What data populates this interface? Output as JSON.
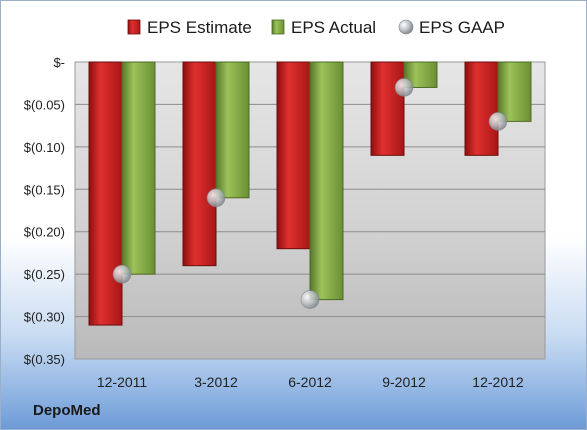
{
  "company": "DepoMed",
  "chart_data": {
    "type": "bar",
    "categories": [
      "12-2011",
      "3-2012",
      "6-2012",
      "9-2012",
      "12-2012"
    ],
    "series": [
      {
        "name": "EPS Estimate",
        "values": [
          -0.31,
          -0.24,
          -0.22,
          -0.11,
          -0.11
        ],
        "color": "#cc1f1f"
      },
      {
        "name": "EPS Actual",
        "values": [
          -0.25,
          -0.16,
          -0.28,
          -0.03,
          -0.07
        ],
        "color": "#7ca73a"
      }
    ],
    "scatter_series": {
      "name": "EPS GAAP",
      "values": [
        -0.25,
        -0.16,
        -0.28,
        -0.03,
        -0.07
      ],
      "color": "#b9bec4"
    },
    "yticks": [
      "$-",
      "$(0.05)",
      "$(0.10)",
      "$(0.15)",
      "$(0.20)",
      "$(0.25)",
      "$(0.30)",
      "$(0.35)"
    ],
    "ytick_values": [
      0,
      -0.05,
      -0.1,
      -0.15,
      -0.2,
      -0.25,
      -0.3,
      -0.35
    ],
    "ylim": [
      -0.35,
      0
    ],
    "legend_position": "top",
    "grid": true
  }
}
